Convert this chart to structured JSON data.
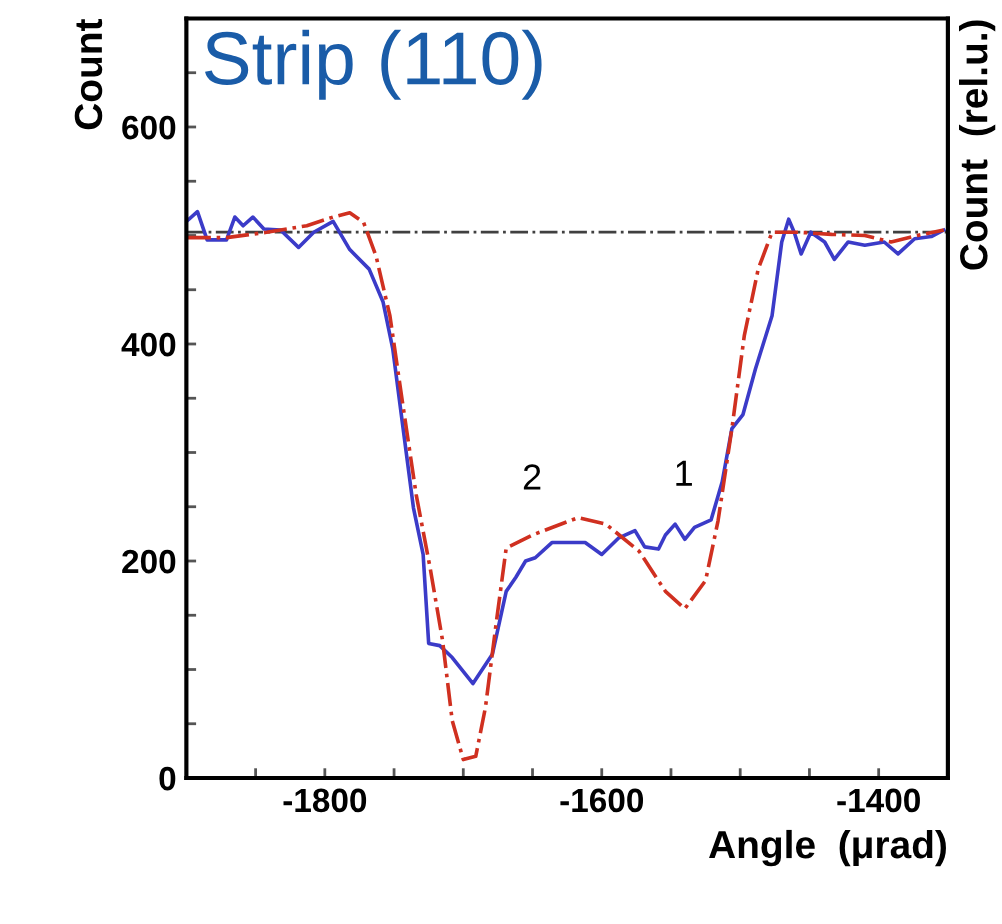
{
  "chart_data": {
    "type": "line",
    "title": "Strip (110)",
    "xlabel": "Angle  (μrad)",
    "ylabel": "Count",
    "y2label": "Count  (rel.u.)",
    "xlim": [
      -1900,
      -1350
    ],
    "ylim": [
      0,
      700
    ],
    "xticks": [
      {
        "value": -1850,
        "label": null
      },
      -1800,
      {
        "value": -1750,
        "label": null
      },
      {
        "value": -1700,
        "label": null
      },
      {
        "value": -1650,
        "label": null
      },
      -1600,
      {
        "value": -1550,
        "label": null
      },
      {
        "value": -1500,
        "label": null
      },
      {
        "value": -1450,
        "label": null
      },
      -1400
    ],
    "yticks": [
      0,
      {
        "value": 50,
        "label": null
      },
      {
        "value": 100,
        "label": null
      },
      {
        "value": 150,
        "label": null
      },
      200,
      {
        "value": 250,
        "label": null
      },
      {
        "value": 300,
        "label": null
      },
      {
        "value": 350,
        "label": null
      },
      400,
      {
        "value": 450,
        "label": null
      },
      {
        "value": 500,
        "label": null
      },
      {
        "value": 550,
        "label": null
      },
      600,
      {
        "value": 650,
        "label": null
      }
    ],
    "grid": false,
    "legend": false,
    "series": [
      {
        "color": "#3b3bc8",
        "line_style": "solid",
        "x": [
          -1899,
          -1892,
          -1885,
          -1871,
          -1865,
          -1859,
          -1852,
          -1844,
          -1832,
          -1819,
          -1808,
          -1794,
          -1782,
          -1768,
          -1758,
          -1751,
          -1746,
          -1741,
          -1736,
          -1729,
          -1725,
          -1717,
          -1708,
          -1693,
          -1679,
          -1669,
          -1662,
          -1655,
          -1648,
          -1636,
          -1612,
          -1600,
          -1588,
          -1576,
          -1569,
          -1559,
          -1554,
          -1547,
          -1540,
          -1533,
          -1521,
          -1513,
          -1506,
          -1498,
          -1489,
          -1477,
          -1470,
          -1465,
          -1461,
          -1456,
          -1449,
          -1439,
          -1432,
          -1422,
          -1410,
          -1396,
          -1386,
          -1374,
          -1362,
          -1353
        ],
        "values": [
          514,
          522,
          496,
          496,
          517,
          509,
          517,
          506,
          505,
          489,
          503,
          513,
          487,
          469,
          439,
          396,
          347,
          298,
          249,
          206,
          124,
          122,
          111,
          87,
          114,
          172,
          185,
          200,
          203,
          217,
          217,
          206,
          221,
          228,
          213,
          211,
          224,
          234,
          220,
          231,
          238,
          273,
          322,
          335,
          377,
          426,
          494,
          515,
          503,
          483,
          503,
          494,
          478,
          494,
          491,
          494,
          483,
          497,
          499,
          505
        ]
      },
      {
        "color": "#d03020",
        "line_style": "dashdot",
        "x": [
          -1899,
          -1871,
          -1842,
          -1813,
          -1794,
          -1782,
          -1772,
          -1763,
          -1753,
          -1744,
          -1734,
          -1724,
          -1715,
          -1708,
          -1700,
          -1691,
          -1684,
          -1676,
          -1669,
          -1650,
          -1617,
          -1597,
          -1573,
          -1554,
          -1540,
          -1525,
          -1516,
          -1506,
          -1497,
          -1487,
          -1477,
          -1458,
          -1434,
          -1410,
          -1391,
          -1372,
          -1353
        ],
        "values": [
          498,
          498,
          503,
          509,
          517,
          521,
          512,
          481,
          426,
          347,
          261,
          194,
          127,
          53,
          17,
          20,
          65,
          145,
          212,
          224,
          240,
          234,
          209,
          172,
          156,
          182,
          237,
          322,
          408,
          469,
          503,
          503,
          501,
          500,
          494,
          500,
          505
        ]
      }
    ],
    "ref_lines": [
      {
        "axis": "y",
        "value": 503,
        "color": "#404040",
        "line_style": "dashdot"
      }
    ],
    "annotations": [
      "2",
      "1"
    ]
  }
}
